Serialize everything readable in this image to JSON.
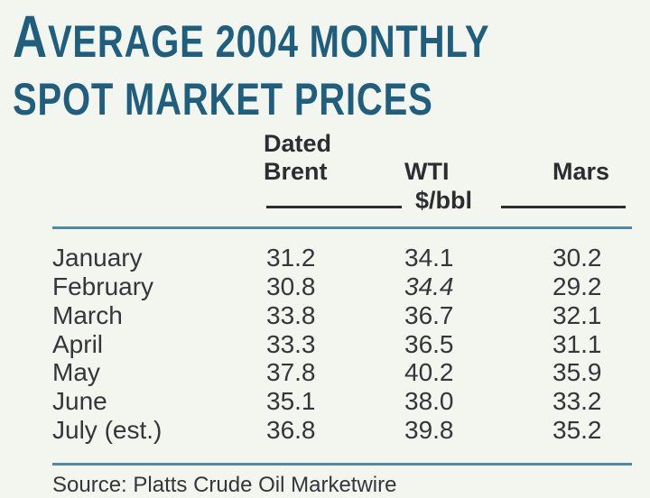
{
  "title": {
    "line1_cap": "A",
    "line1_rest": "VERAGE 2004 MONTHLY",
    "line2": "SPOT MARKET PRICES"
  },
  "columns": {
    "brent_line1": "Dated",
    "brent_line2": "Brent",
    "wti": "WTI",
    "mars": "Mars",
    "unit": "$/bbl"
  },
  "rows": [
    {
      "month": "January",
      "brent": "31.2",
      "wti": "34.1",
      "mars": "30.2"
    },
    {
      "month": "February",
      "brent": "30.8",
      "wti": "34.4",
      "mars": "29.2"
    },
    {
      "month": "March",
      "brent": "33.8",
      "wti": "36.7",
      "mars": "32.1"
    },
    {
      "month": "April",
      "brent": "33.3",
      "wti": "36.5",
      "mars": "31.1"
    },
    {
      "month": "May",
      "brent": "37.8",
      "wti": "40.2",
      "mars": "35.9"
    },
    {
      "month": "June",
      "brent": "35.1",
      "wti": "38.0",
      "mars": "33.2"
    },
    {
      "month": "July (est.)",
      "brent": "36.8",
      "wti": "39.8",
      "mars": "35.2"
    }
  ],
  "source": "Source: Platts Crude Oil Marketwire",
  "colors": {
    "title": "#1f5e7d",
    "rule": "#4e8aa6",
    "background": "#f3f5ef"
  }
}
